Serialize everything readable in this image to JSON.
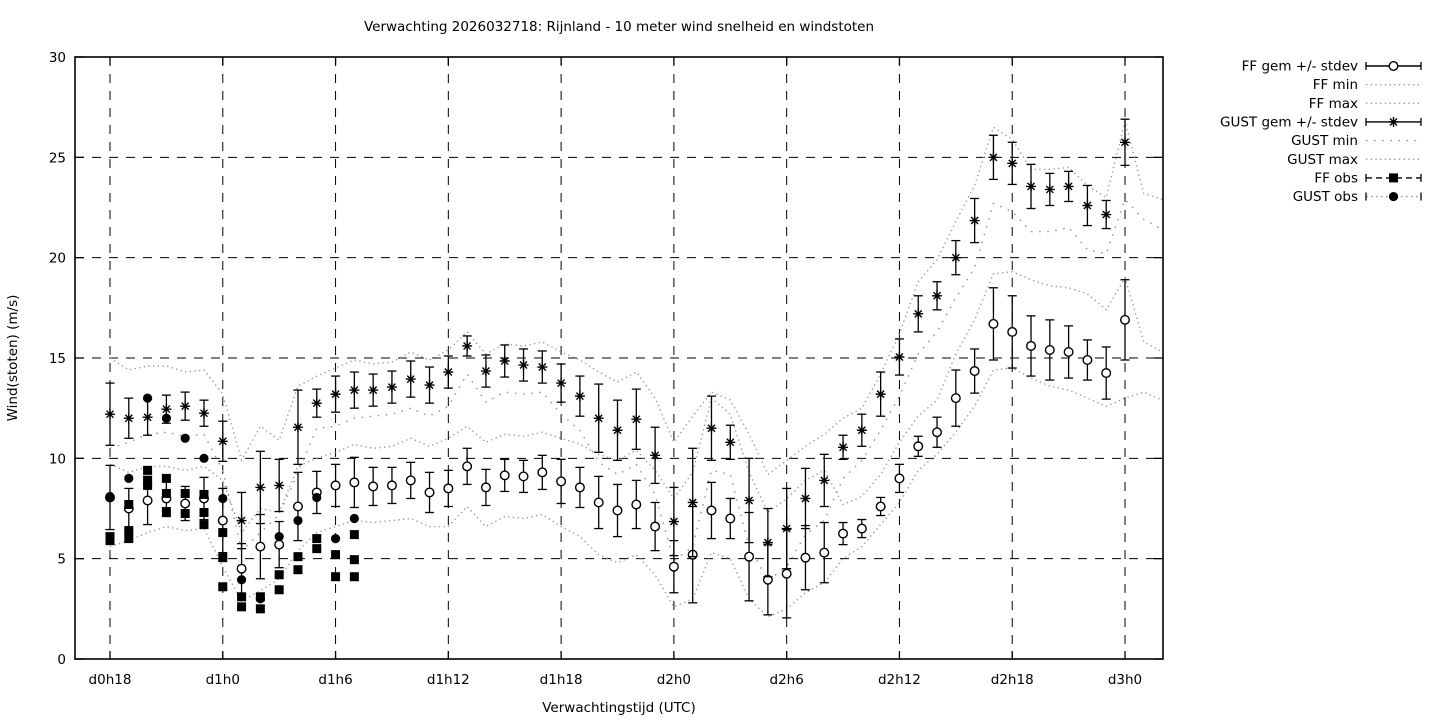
{
  "title": "Verwachting 2026032718: Rijnland - 10 meter wind snelheid en windstoten",
  "colors": {
    "foreground": "#000000",
    "background": "#ffffff",
    "minmax_line": "#979797"
  },
  "legend": [
    {
      "label": "FF gem +/- stdev",
      "style": "solid",
      "marker": "circle-open",
      "caps": true
    },
    {
      "label": "FF min",
      "style": "dots-fine",
      "marker": null,
      "caps": false
    },
    {
      "label": "FF max",
      "style": "dots-fine",
      "marker": null,
      "caps": false
    },
    {
      "label": "GUST gem +/- stdev",
      "style": "solid",
      "marker": "asterisk",
      "caps": true
    },
    {
      "label": "GUST min",
      "style": "dots-sparse",
      "marker": null,
      "caps": false
    },
    {
      "label": "GUST max",
      "style": "dots-fine",
      "marker": null,
      "caps": false
    },
    {
      "label": "FF obs",
      "style": "dashed",
      "marker": "square",
      "caps": true
    },
    {
      "label": "GUST obs",
      "style": "dots-mid",
      "marker": "circle-filled",
      "caps": true
    }
  ],
  "chart_data": {
    "type": "line",
    "title": "Verwachting 2026032718: Rijnland - 10 meter wind snelheid en windstoten",
    "xlabel": "Verwachtingstijd (UTC)",
    "ylabel": "Wind(stoten) (m/s)",
    "x_ticks": [
      "d0h18",
      "d1h0",
      "d1h6",
      "d1h12",
      "d1h18",
      "d2h0",
      "d2h6",
      "d2h12",
      "d2h18",
      "d3h0"
    ],
    "hours_per_tick": 6,
    "ylim": [
      0,
      30
    ],
    "yticks": [
      0,
      5,
      10,
      15,
      20,
      25,
      30
    ],
    "grid": "dashed",
    "legend_position": "outside-top-right",
    "series": [
      {
        "role": "ff_gem",
        "name": "FF gem +/- stdev",
        "marker": "circle-open",
        "values": [
          8.05,
          7.5,
          7.9,
          8.0,
          7.75,
          8.0,
          6.9,
          4.5,
          5.6,
          5.7,
          7.6,
          8.3,
          8.65,
          8.8,
          8.6,
          8.65,
          8.9,
          8.3,
          8.5,
          9.6,
          8.55,
          9.15,
          9.1,
          9.3,
          8.85,
          8.55,
          7.8,
          7.4,
          7.7,
          6.6,
          4.6,
          5.2,
          7.4,
          7.0,
          5.1,
          3.95,
          4.25,
          5.05,
          5.3,
          6.25,
          6.5,
          7.6,
          9.0,
          10.6,
          11.3,
          13.0,
          14.35,
          16.7,
          16.3,
          15.6,
          15.4,
          15.3,
          14.9,
          14.25,
          16.9
        ],
        "stdev": [
          1.6,
          1.0,
          1.2,
          0.9,
          0.85,
          1.05,
          1.6,
          1.25,
          1.6,
          1.15,
          1.7,
          1.05,
          1.05,
          1.25,
          0.95,
          0.9,
          0.9,
          1.0,
          0.9,
          0.9,
          0.9,
          0.8,
          0.8,
          0.85,
          1.1,
          1.0,
          1.3,
          1.3,
          1.2,
          1.2,
          1.3,
          2.4,
          1.4,
          1.0,
          2.2,
          1.75,
          2.2,
          1.6,
          1.5,
          0.55,
          0.45,
          0.45,
          0.7,
          0.5,
          0.75,
          1.4,
          1.1,
          1.8,
          1.8,
          1.5,
          1.5,
          1.3,
          1.0,
          1.3,
          2.0
        ]
      },
      {
        "role": "gust_gem",
        "name": "GUST gem +/- stdev",
        "marker": "asterisk",
        "values": [
          12.2,
          12.0,
          12.05,
          12.45,
          12.6,
          12.25,
          10.85,
          6.9,
          8.55,
          8.65,
          11.55,
          12.75,
          13.2,
          13.4,
          13.4,
          13.55,
          13.95,
          13.65,
          14.3,
          15.6,
          14.35,
          14.85,
          14.65,
          14.55,
          13.75,
          13.1,
          12.0,
          11.4,
          11.95,
          10.15,
          6.85,
          7.8,
          11.5,
          10.8,
          7.9,
          5.8,
          6.5,
          8.0,
          8.9,
          10.55,
          11.4,
          13.2,
          15.05,
          17.2,
          18.1,
          20.0,
          21.85,
          25.0,
          24.7,
          23.55,
          23.4,
          23.55,
          22.6,
          22.15,
          25.75
        ],
        "stdev": [
          1.55,
          1.0,
          0.9,
          0.7,
          0.7,
          0.65,
          1.0,
          1.4,
          1.8,
          1.3,
          1.85,
          0.7,
          0.9,
          0.9,
          0.8,
          0.8,
          0.9,
          0.9,
          0.8,
          0.5,
          0.8,
          0.8,
          0.8,
          0.8,
          0.95,
          1.0,
          1.7,
          1.5,
          1.5,
          1.4,
          1.7,
          2.7,
          1.6,
          0.85,
          2.1,
          1.7,
          2.0,
          1.5,
          1.3,
          0.6,
          0.8,
          1.1,
          0.9,
          0.9,
          0.7,
          0.85,
          1.1,
          1.1,
          1.05,
          1.1,
          0.8,
          0.75,
          1.0,
          0.7,
          1.15
        ]
      },
      {
        "role": "ff_min",
        "name": "FF min",
        "line": "dots-fine",
        "values": [
          5.6,
          5.9,
          6.3,
          6.6,
          6.4,
          6.5,
          4.6,
          2.9,
          3.4,
          4.0,
          5.4,
          6.3,
          6.6,
          6.9,
          6.8,
          6.9,
          7.0,
          6.6,
          6.6,
          7.6,
          6.6,
          7.1,
          7.0,
          7.2,
          6.6,
          6.1,
          5.2,
          4.8,
          5.2,
          4.2,
          2.6,
          3.0,
          5.3,
          5.0,
          3.0,
          2.1,
          2.5,
          3.3,
          3.8,
          5.0,
          5.6,
          6.7,
          7.8,
          9.4,
          10.2,
          11.3,
          12.6,
          14.4,
          14.5,
          14.0,
          13.6,
          13.4,
          13.0,
          12.6,
          13.0,
          13.3,
          12.9
        ]
      },
      {
        "role": "ff_max",
        "name": "FF max",
        "line": "dots-fine",
        "values": [
          9.7,
          9.3,
          9.6,
          9.6,
          9.4,
          9.6,
          8.9,
          6.3,
          7.5,
          7.3,
          9.6,
          10.0,
          10.3,
          10.7,
          10.5,
          10.6,
          11.0,
          10.6,
          11.0,
          11.6,
          10.8,
          11.2,
          11.1,
          11.3,
          11.0,
          10.7,
          10.2,
          9.9,
          10.4,
          9.4,
          8.0,
          9.3,
          13.0,
          12.2,
          9.3,
          7.3,
          8.0,
          8.9,
          9.4,
          7.7,
          8.1,
          9.2,
          10.8,
          12.1,
          12.9,
          15.2,
          16.9,
          19.2,
          19.3,
          18.9,
          18.6,
          18.5,
          18.2,
          17.4,
          19.0,
          15.8,
          15.3
        ]
      },
      {
        "role": "gust_min",
        "name": "GUST min",
        "line": "dots-sparse",
        "values": [
          10.5,
          10.8,
          11.2,
          11.3,
          11.1,
          11.2,
          9.4,
          5.4,
          6.3,
          7.2,
          9.3,
          11.5,
          11.6,
          12.0,
          12.1,
          12.2,
          12.5,
          12.1,
          12.6,
          14.2,
          12.8,
          13.3,
          13.2,
          13.3,
          12.2,
          11.4,
          9.8,
          9.2,
          9.7,
          8.2,
          4.9,
          5.6,
          9.4,
          9.2,
          5.6,
          3.9,
          4.6,
          6.2,
          6.9,
          9.0,
          9.9,
          11.4,
          13.1,
          15.2,
          16.3,
          18.0,
          19.5,
          22.7,
          22.3,
          21.3,
          21.3,
          21.5,
          20.4,
          20.2,
          22.9,
          21.9,
          21.4
        ]
      },
      {
        "role": "gust_max",
        "name": "GUST max",
        "line": "dots-fine",
        "values": [
          15.0,
          14.4,
          14.6,
          14.6,
          14.3,
          14.4,
          13.2,
          9.9,
          11.6,
          10.9,
          13.6,
          14.1,
          14.5,
          14.9,
          14.7,
          14.8,
          15.3,
          14.9,
          15.4,
          16.3,
          15.2,
          15.7,
          15.6,
          15.8,
          15.3,
          14.9,
          14.3,
          13.8,
          14.3,
          13.0,
          10.8,
          12.1,
          13.3,
          12.9,
          11.2,
          9.2,
          9.9,
          10.6,
          11.2,
          12.0,
          12.5,
          14.2,
          16.2,
          18.8,
          19.9,
          21.8,
          23.6,
          26.5,
          25.9,
          24.4,
          24.4,
          24.5,
          23.6,
          23.0,
          26.8,
          23.2,
          22.9
        ]
      },
      {
        "role": "ff_obs",
        "name": "FF obs",
        "marker": "square",
        "points": [
          [
            6.1,
            5.9
          ],
          [
            7.7,
            6.4,
            6.0
          ],
          [
            9.4,
            8.9,
            8.65
          ],
          [
            9.0,
            8.25,
            7.35
          ],
          [
            8.25,
            7.25
          ],
          [
            8.2,
            7.3,
            6.7
          ],
          [
            6.3,
            5.05,
            3.6
          ],
          [
            3.1,
            2.6
          ],
          [
            3.1,
            2.5
          ],
          [
            4.2,
            3.45
          ],
          [
            5.1,
            4.45
          ],
          [
            6.0,
            5.5
          ],
          [
            5.2,
            4.1
          ],
          [
            6.2,
            4.95,
            4.1
          ]
        ]
      },
      {
        "role": "gust_obs",
        "name": "GUST obs",
        "marker": "circle-filled",
        "points": [
          [
            8.1
          ],
          [
            9.0
          ],
          [
            13.0
          ],
          [
            12.0
          ],
          [
            11.0
          ],
          [
            10.0
          ],
          [
            8.0
          ],
          [
            3.95
          ],
          [
            3.0
          ],
          [
            6.1
          ],
          [
            6.9
          ],
          [
            8.05
          ],
          [
            6.0
          ],
          [
            7.0
          ]
        ]
      }
    ]
  }
}
